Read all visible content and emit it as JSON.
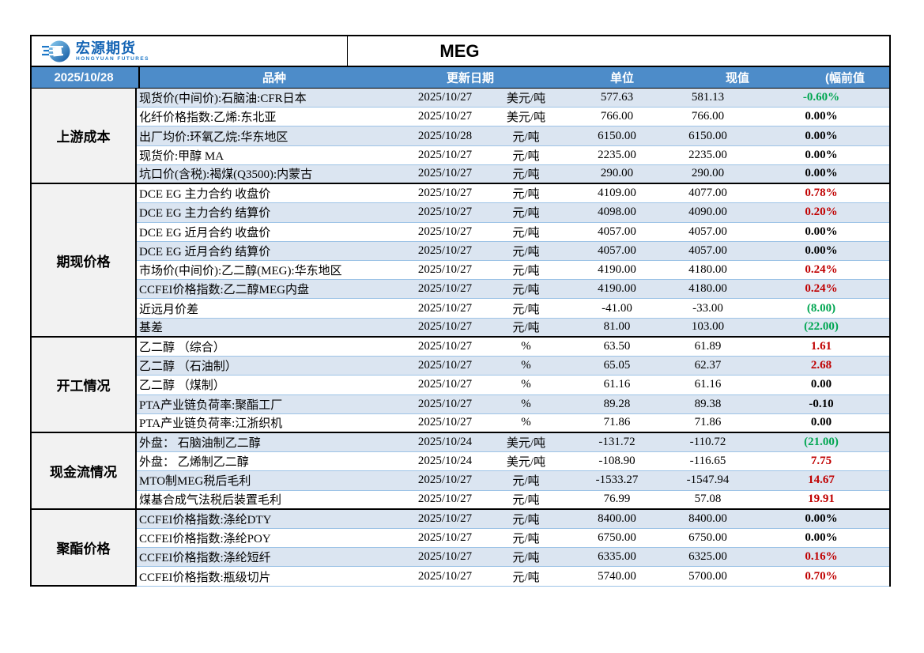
{
  "logo": {
    "name": "宏源期货",
    "subtitle": "HONGYUAN FUTURES"
  },
  "title": "MEG",
  "report_date": "2025/10/28",
  "columns": {
    "product": "品种",
    "update_date": "更新日期",
    "unit": "单位",
    "current": "现值",
    "change_prev": "(幅前值"
  },
  "colors": {
    "header_bg": "#4d8cc9",
    "row_alt_bg": "#dbe5f1",
    "row_bg": "#ffffff",
    "label_bg": "#f2f2f2",
    "row_line": "#9dc3e6",
    "up_red": "#c00000",
    "down_green": "#00a651",
    "flat_black": "#000000",
    "logo_blue": "#1565b5"
  },
  "groups": [
    {
      "label": "上游成本",
      "rows": [
        {
          "product": "现货价(中间价):石脑油:CFR日本",
          "date": "2025/10/27",
          "unit": "美元/吨",
          "current": "577.63",
          "previous": "581.13",
          "change": "-0.60%",
          "trend": "down"
        },
        {
          "product": "化纤价格指数:乙烯:东北亚",
          "date": "2025/10/27",
          "unit": "美元/吨",
          "current": "766.00",
          "previous": "766.00",
          "change": "0.00%",
          "trend": "flat"
        },
        {
          "product": "出厂均价:环氧乙烷:华东地区",
          "date": "2025/10/28",
          "unit": "元/吨",
          "current": "6150.00",
          "previous": "6150.00",
          "change": "0.00%",
          "trend": "flat"
        },
        {
          "product": "现货价:甲醇 MA",
          "date": "2025/10/27",
          "unit": "元/吨",
          "current": "2235.00",
          "previous": "2235.00",
          "change": "0.00%",
          "trend": "flat"
        },
        {
          "product": "坑口价(含税):褐煤(Q3500):内蒙古",
          "date": "2025/10/27",
          "unit": "元/吨",
          "current": "290.00",
          "previous": "290.00",
          "change": "0.00%",
          "trend": "flat"
        }
      ]
    },
    {
      "label": "期现价格",
      "rows": [
        {
          "product": "DCE EG 主力合约 收盘价",
          "date": "2025/10/27",
          "unit": "元/吨",
          "current": "4109.00",
          "previous": "4077.00",
          "change": "0.78%",
          "trend": "up"
        },
        {
          "product": "DCE EG 主力合约 结算价",
          "date": "2025/10/27",
          "unit": "元/吨",
          "current": "4098.00",
          "previous": "4090.00",
          "change": "0.20%",
          "trend": "up"
        },
        {
          "product": "DCE EG 近月合约 收盘价",
          "date": "2025/10/27",
          "unit": "元/吨",
          "current": "4057.00",
          "previous": "4057.00",
          "change": "0.00%",
          "trend": "flat"
        },
        {
          "product": "DCE EG 近月合约 结算价",
          "date": "2025/10/27",
          "unit": "元/吨",
          "current": "4057.00",
          "previous": "4057.00",
          "change": "0.00%",
          "trend": "flat"
        },
        {
          "product": "市场价(中间价):乙二醇(MEG):华东地区",
          "date": "2025/10/27",
          "unit": "元/吨",
          "current": "4190.00",
          "previous": "4180.00",
          "change": "0.24%",
          "trend": "up"
        },
        {
          "product": "CCFEI价格指数:乙二醇MEG内盘",
          "date": "2025/10/27",
          "unit": "元/吨",
          "current": "4190.00",
          "previous": "4180.00",
          "change": "0.24%",
          "trend": "up"
        },
        {
          "product": "近远月价差",
          "date": "2025/10/27",
          "unit": "元/吨",
          "current": "-41.00",
          "previous": "-33.00",
          "change": "(8.00)",
          "trend": "down"
        },
        {
          "product": "基差",
          "date": "2025/10/27",
          "unit": "元/吨",
          "current": "81.00",
          "previous": "103.00",
          "change": "(22.00)",
          "trend": "down"
        }
      ]
    },
    {
      "label": "开工情况",
      "rows": [
        {
          "product": "乙二醇 （综合）",
          "date": "2025/10/27",
          "unit": "%",
          "current": "63.50",
          "previous": "61.89",
          "change": "1.61",
          "trend": "up"
        },
        {
          "product": "乙二醇 （石油制）",
          "date": "2025/10/27",
          "unit": "%",
          "current": "65.05",
          "previous": "62.37",
          "change": "2.68",
          "trend": "up"
        },
        {
          "product": "乙二醇 （煤制）",
          "date": "2025/10/27",
          "unit": "%",
          "current": "61.16",
          "previous": "61.16",
          "change": "0.00",
          "trend": "flat"
        },
        {
          "product": "PTA产业链负荷率:聚酯工厂",
          "date": "2025/10/27",
          "unit": "%",
          "current": "89.28",
          "previous": "89.38",
          "change": "-0.10",
          "trend": "flat"
        },
        {
          "product": "PTA产业链负荷率:江浙织机",
          "date": "2025/10/27",
          "unit": "%",
          "current": "71.86",
          "previous": "71.86",
          "change": "0.00",
          "trend": "flat"
        }
      ]
    },
    {
      "label": "现金流情况",
      "rows": [
        {
          "product": "外盘： 石脑油制乙二醇",
          "date": "2025/10/24",
          "unit": "美元/吨",
          "current": "-131.72",
          "previous": "-110.72",
          "change": "(21.00)",
          "trend": "down"
        },
        {
          "product": "外盘： 乙烯制乙二醇",
          "date": "2025/10/24",
          "unit": "美元/吨",
          "current": "-108.90",
          "previous": "-116.65",
          "change": "7.75",
          "trend": "up"
        },
        {
          "product": "MTO制MEG税后毛利",
          "date": "2025/10/27",
          "unit": "元/吨",
          "current": "-1533.27",
          "previous": "-1547.94",
          "change": "14.67",
          "trend": "up"
        },
        {
          "product": "煤基合成气法税后装置毛利",
          "date": "2025/10/27",
          "unit": "元/吨",
          "current": "76.99",
          "previous": "57.08",
          "change": "19.91",
          "trend": "up"
        }
      ]
    },
    {
      "label": "聚酯价格",
      "rows": [
        {
          "product": "CCFEI价格指数:涤纶DTY",
          "date": "2025/10/27",
          "unit": "元/吨",
          "current": "8400.00",
          "previous": "8400.00",
          "change": "0.00%",
          "trend": "flat"
        },
        {
          "product": "CCFEI价格指数:涤纶POY",
          "date": "2025/10/27",
          "unit": "元/吨",
          "current": "6750.00",
          "previous": "6750.00",
          "change": "0.00%",
          "trend": "flat"
        },
        {
          "product": "CCFEI价格指数:涤纶短纤",
          "date": "2025/10/27",
          "unit": "元/吨",
          "current": "6335.00",
          "previous": "6325.00",
          "change": "0.16%",
          "trend": "up"
        },
        {
          "product": "CCFEI价格指数:瓶级切片",
          "date": "2025/10/27",
          "unit": "元/吨",
          "current": "5740.00",
          "previous": "5700.00",
          "change": "0.70%",
          "trend": "up"
        }
      ]
    }
  ]
}
